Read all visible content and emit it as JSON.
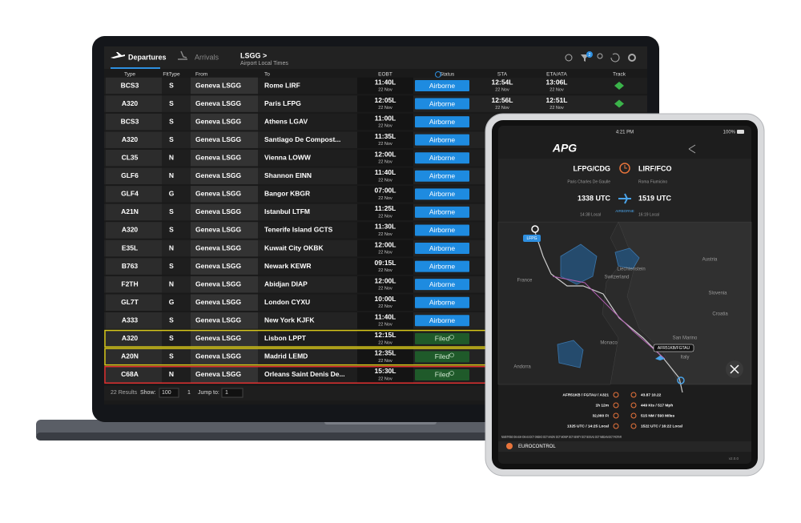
{
  "laptop": {
    "tabs": [
      "Departures",
      "Arrivals"
    ],
    "breadcrumb": "LSGG >",
    "subtitle": "Airport Local Times",
    "badge": "2",
    "columns": [
      "Type",
      "FltType",
      "From",
      "To",
      "EOBT",
      "Status",
      "STA",
      "ETA/ATA",
      "Track"
    ],
    "rows": [
      {
        "type": "BCS3",
        "flt_type": "S",
        "from": "Geneva LSGG",
        "to": "Rome LIRF",
        "eobt": "11:40L",
        "eobt_date": "22 Nov",
        "status": "Airborne",
        "sta": "12:54L",
        "sta_date": "22 Nov",
        "eta": "13:06L",
        "eta_date": "22 Nov"
      },
      {
        "type": "A320",
        "flt_type": "S",
        "from": "Geneva LSGG",
        "to": "Paris LFPG",
        "eobt": "12:05L",
        "eobt_date": "22 Nov",
        "status": "Airborne",
        "sta": "12:56L",
        "sta_date": "22 Nov",
        "eta": "12:51L",
        "eta_date": "22 Nov"
      },
      {
        "type": "BCS3",
        "flt_type": "S",
        "from": "Geneva LSGG",
        "to": "Athens LGAV",
        "eobt": "11:00L",
        "eobt_date": "22 Nov",
        "status": "Airborne"
      },
      {
        "type": "A320",
        "flt_type": "S",
        "from": "Geneva LSGG",
        "to": "Santiago De Compost...",
        "eobt": "11:35L",
        "eobt_date": "22 Nov",
        "status": "Airborne"
      },
      {
        "type": "CL35",
        "flt_type": "N",
        "from": "Geneva LSGG",
        "to": "Vienna LOWW",
        "eobt": "12:00L",
        "eobt_date": "22 Nov",
        "status": "Airborne"
      },
      {
        "type": "GLF6",
        "flt_type": "N",
        "from": "Geneva LSGG",
        "to": "Shannon EINN",
        "eobt": "11:40L",
        "eobt_date": "22 Nov",
        "status": "Airborne"
      },
      {
        "type": "GLF4",
        "flt_type": "G",
        "from": "Geneva LSGG",
        "to": "Bangor KBGR",
        "eobt": "07:00L",
        "eobt_date": "22 Nov",
        "status": "Airborne"
      },
      {
        "type": "A21N",
        "flt_type": "S",
        "from": "Geneva LSGG",
        "to": "Istanbul LTFM",
        "eobt": "11:25L",
        "eobt_date": "22 Nov",
        "status": "Airborne"
      },
      {
        "type": "A320",
        "flt_type": "S",
        "from": "Geneva LSGG",
        "to": "Tenerife Island GCTS",
        "eobt": "11:30L",
        "eobt_date": "22 Nov",
        "status": "Airborne"
      },
      {
        "type": "E35L",
        "flt_type": "N",
        "from": "Geneva LSGG",
        "to": "Kuwait City OKBK",
        "eobt": "12:00L",
        "eobt_date": "22 Nov",
        "status": "Airborne"
      },
      {
        "type": "B763",
        "flt_type": "S",
        "from": "Geneva LSGG",
        "to": "Newark KEWR",
        "eobt": "09:15L",
        "eobt_date": "22 Nov",
        "status": "Airborne"
      },
      {
        "type": "F2TH",
        "flt_type": "N",
        "from": "Geneva LSGG",
        "to": "Abidjan DIAP",
        "eobt": "12:00L",
        "eobt_date": "22 Nov",
        "status": "Airborne"
      },
      {
        "type": "GL7T",
        "flt_type": "G",
        "from": "Geneva LSGG",
        "to": "London CYXU",
        "eobt": "10:00L",
        "eobt_date": "22 Nov",
        "status": "Airborne"
      },
      {
        "type": "A333",
        "flt_type": "S",
        "from": "Geneva LSGG",
        "to": "New York KJFK",
        "eobt": "11:40L",
        "eobt_date": "22 Nov",
        "status": "Airborne"
      },
      {
        "type": "A320",
        "flt_type": "S",
        "from": "Geneva LSGG",
        "to": "Lisbon LPPT",
        "eobt": "12:15L",
        "eobt_date": "22 Nov",
        "status": "Filed"
      },
      {
        "type": "A20N",
        "flt_type": "S",
        "from": "Geneva LSGG",
        "to": "Madrid LEMD",
        "eobt": "12:35L",
        "eobt_date": "22 Nov",
        "status": "Filed"
      },
      {
        "type": "C68A",
        "flt_type": "N",
        "from": "Geneva LSGG",
        "to": "Orleans Saint Denis De...",
        "eobt": "15:30L",
        "eobt_date": "22 Nov",
        "status": "Filed"
      }
    ],
    "footer": {
      "results": "22 Results",
      "show_label": "Show:",
      "show": "100",
      "page": "1",
      "jump_label": "Jump to:",
      "jump": "1"
    }
  },
  "tablet": {
    "time": "4:21 PM",
    "battery": "100%",
    "logo": "APG",
    "origin": "LFPG/CDG",
    "destination": "LIRF/FCO",
    "origin_name": "Paris Charles De Gaulle",
    "destination_name": "Roma Fiumicino",
    "departure": "1338 UTC",
    "arrival": "1519 UTC",
    "departure_local": "14:38 Local",
    "arrival_local": "16:19 Local",
    "state": "AIRBORNE",
    "map_labels": [
      "France",
      "Switzerland",
      "Liechtenstein",
      "Austria",
      "Slovenia",
      "Croatia",
      "Monaco",
      "Andorra",
      "San Marino",
      "Italy"
    ],
    "origin_tag": "LFPG",
    "flight_tag": "AFR51KB/FGTAU",
    "info_left": [
      "AFR51KB / FGTAU / A321",
      "1h 12m",
      "32,000 Ft",
      "1325 UTC / 14:25 Local"
    ],
    "info_right": [
      "43.87 10.22",
      "449 Kts / 517 Mph",
      "515 NM / 593 Miles",
      "1522 UTC / 16:22 Local"
    ],
    "route": "N0457F350 OKASIH OKASI DCT OKEKO DCT MADIV DCT MOKIP DCT KENTY DCT BOGAS DCT MEDAM DCT ROTAR",
    "source": "EUROCONTROL",
    "version": "v2.0.0"
  }
}
